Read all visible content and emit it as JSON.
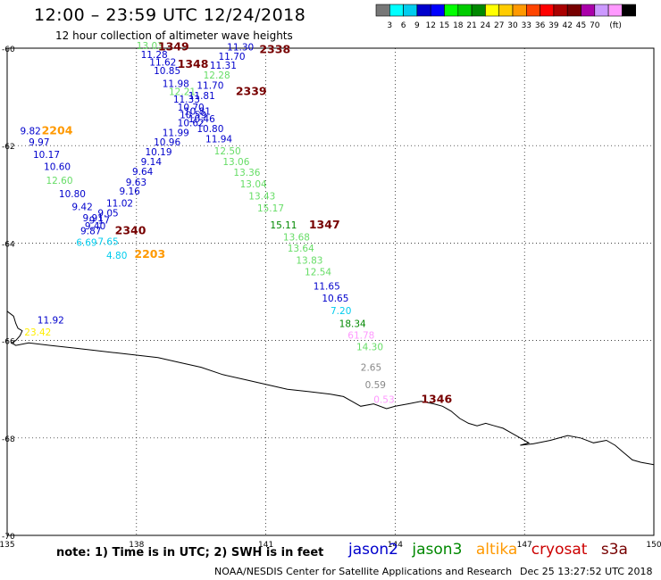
{
  "header": {
    "title": "12:00 – 23:59 UTC 12/24/2018",
    "subtitle": "12 hour collection of altimeter wave heights"
  },
  "colorbar": {
    "colors": [
      "#777777",
      "#00ffff",
      "#00ccee",
      "#0000cc",
      "#0000ff",
      "#00ff00",
      "#00cc00",
      "#008800",
      "#ffff00",
      "#ffcc00",
      "#ff9900",
      "#ff4400",
      "#ff0000",
      "#aa0000",
      "#770000",
      "#aa00aa",
      "#cc99ff",
      "#ff99ff",
      "#000000"
    ],
    "labels": [
      "3",
      "6",
      "9",
      "12",
      "15",
      "18",
      "21",
      "24",
      "27",
      "30",
      "33",
      "36",
      "39",
      "42",
      "45",
      "70",
      "(ft)"
    ]
  },
  "map": {
    "lon_range": [
      135,
      150
    ],
    "lat_range": [
      -70,
      -60
    ],
    "lon_ticks": [
      "135",
      "138",
      "141",
      "144",
      "147",
      "150"
    ],
    "lat_ticks": [
      "-60",
      "-62",
      "-64",
      "-66",
      "-68",
      "-70"
    ],
    "lat_tick_values": [
      -60,
      -62,
      -64,
      -66,
      -68,
      -70
    ],
    "lon_tick_values": [
      135,
      138,
      141,
      144,
      147,
      150
    ],
    "grid": true,
    "coastline_shown": true
  },
  "observations": [
    {
      "lon": 138.0,
      "lat": -60.02,
      "text": "13.03",
      "color": "#66dd66"
    },
    {
      "lon": 138.1,
      "lat": -60.2,
      "text": "11.28",
      "color": "#0000cc"
    },
    {
      "lon": 138.3,
      "lat": -60.36,
      "text": "11.62",
      "color": "#0000cc"
    },
    {
      "lon": 138.4,
      "lat": -60.53,
      "text": "10.85",
      "color": "#0000cc"
    },
    {
      "lon": 138.6,
      "lat": -60.8,
      "text": "11.98",
      "color": "#0000cc"
    },
    {
      "lon": 138.75,
      "lat": -60.96,
      "text": "12.21",
      "color": "#66dd66"
    },
    {
      "lon": 138.85,
      "lat": -61.12,
      "text": "11.33",
      "color": "#0000cc"
    },
    {
      "lon": 138.95,
      "lat": -61.28,
      "text": "10.70",
      "color": "#0000cc"
    },
    {
      "lon": 139.0,
      "lat": -61.44,
      "text": "10.59",
      "color": "#0000cc"
    },
    {
      "lon": 138.95,
      "lat": -61.6,
      "text": "10.62",
      "color": "#0000cc"
    },
    {
      "lon": 138.6,
      "lat": -61.8,
      "text": "11.99",
      "color": "#0000cc"
    },
    {
      "lon": 138.4,
      "lat": -62.0,
      "text": "10.96",
      "color": "#0000cc"
    },
    {
      "lon": 138.2,
      "lat": -62.2,
      "text": "10.19",
      "color": "#0000cc"
    },
    {
      "lon": 138.1,
      "lat": -62.4,
      "text": "9.14",
      "color": "#0000cc"
    },
    {
      "lon": 137.9,
      "lat": -62.6,
      "text": "9.64",
      "color": "#0000cc"
    },
    {
      "lon": 137.75,
      "lat": -62.82,
      "text": "9.63",
      "color": "#0000cc"
    },
    {
      "lon": 137.6,
      "lat": -63.0,
      "text": "9.16",
      "color": "#0000cc"
    },
    {
      "lon": 137.3,
      "lat": -63.25,
      "text": "11.02",
      "color": "#0000cc"
    },
    {
      "lon": 137.1,
      "lat": -63.45,
      "text": "9.05",
      "color": "#0000cc"
    },
    {
      "lon": 136.9,
      "lat": -63.6,
      "text": "9.17",
      "color": "#0000cc"
    },
    {
      "lon": 136.8,
      "lat": -63.72,
      "text": "9.40",
      "color": "#0000cc"
    },
    {
      "lon": 136.7,
      "lat": -63.82,
      "text": "9.87",
      "color": "#0000cc"
    },
    {
      "lon": 137.1,
      "lat": -64.04,
      "text": "7.65",
      "color": "#00ccee"
    },
    {
      "lon": 136.6,
      "lat": -64.06,
      "text": "6.69",
      "color": "#00ccee"
    },
    {
      "lon": 137.3,
      "lat": -64.32,
      "text": "4.80",
      "color": "#00ccee"
    },
    {
      "lon": 136.75,
      "lat": -63.55,
      "text": "9.91",
      "color": "#0000cc"
    },
    {
      "lon": 136.5,
      "lat": -63.32,
      "text": "9.42",
      "color": "#0000cc"
    },
    {
      "lon": 136.2,
      "lat": -63.06,
      "text": "10.80",
      "color": "#0000cc"
    },
    {
      "lon": 135.9,
      "lat": -62.78,
      "text": "12.60",
      "color": "#66dd66"
    },
    {
      "lon": 135.85,
      "lat": -62.5,
      "text": "10.60",
      "color": "#0000cc"
    },
    {
      "lon": 135.6,
      "lat": -62.25,
      "text": "10.17",
      "color": "#0000cc"
    },
    {
      "lon": 135.5,
      "lat": -62.0,
      "text": "9.97",
      "color": "#0000cc"
    },
    {
      "lon": 135.3,
      "lat": -61.77,
      "text": "9.82",
      "color": "#0000cc"
    },
    {
      "lon": 140.1,
      "lat": -60.05,
      "text": "11.30",
      "color": "#0000cc"
    },
    {
      "lon": 139.9,
      "lat": -60.24,
      "text": "11.70",
      "color": "#0000cc"
    },
    {
      "lon": 139.7,
      "lat": -60.42,
      "text": "11.31",
      "color": "#0000cc"
    },
    {
      "lon": 139.55,
      "lat": -60.62,
      "text": "12.28",
      "color": "#66dd66"
    },
    {
      "lon": 139.4,
      "lat": -60.83,
      "text": "11.70",
      "color": "#0000cc"
    },
    {
      "lon": 139.2,
      "lat": -61.04,
      "text": "11.81",
      "color": "#0000cc"
    },
    {
      "lon": 139.1,
      "lat": -61.36,
      "text": "10.81",
      "color": "#0000cc"
    },
    {
      "lon": 139.2,
      "lat": -61.52,
      "text": "10.46",
      "color": "#0000cc"
    },
    {
      "lon": 139.4,
      "lat": -61.72,
      "text": "10.80",
      "color": "#0000cc"
    },
    {
      "lon": 139.6,
      "lat": -61.93,
      "text": "11.94",
      "color": "#0000cc"
    },
    {
      "lon": 139.8,
      "lat": -62.18,
      "text": "12.50",
      "color": "#66dd66"
    },
    {
      "lon": 140.0,
      "lat": -62.4,
      "text": "13.06",
      "color": "#66dd66"
    },
    {
      "lon": 140.25,
      "lat": -62.62,
      "text": "13.36",
      "color": "#66dd66"
    },
    {
      "lon": 140.4,
      "lat": -62.86,
      "text": "13.04",
      "color": "#66dd66"
    },
    {
      "lon": 140.6,
      "lat": -63.1,
      "text": "13.43",
      "color": "#66dd66"
    },
    {
      "lon": 140.8,
      "lat": -63.35,
      "text": "15.17",
      "color": "#66dd66"
    },
    {
      "lon": 141.1,
      "lat": -63.7,
      "text": "15.11",
      "color": "#008800"
    },
    {
      "lon": 141.4,
      "lat": -63.95,
      "text": "13.68",
      "color": "#66dd66"
    },
    {
      "lon": 141.5,
      "lat": -64.18,
      "text": "13.64",
      "color": "#66dd66"
    },
    {
      "lon": 141.7,
      "lat": -64.42,
      "text": "13.83",
      "color": "#66dd66"
    },
    {
      "lon": 141.9,
      "lat": -64.66,
      "text": "12.54",
      "color": "#66dd66"
    },
    {
      "lon": 142.1,
      "lat": -64.95,
      "text": "11.65",
      "color": "#0000cc"
    },
    {
      "lon": 142.3,
      "lat": -65.2,
      "text": "10.65",
      "color": "#0000cc"
    },
    {
      "lon": 142.5,
      "lat": -65.46,
      "text": "7.20",
      "color": "#00ccee"
    },
    {
      "lon": 142.7,
      "lat": -65.72,
      "text": "18.34",
      "color": "#008800"
    },
    {
      "lon": 142.9,
      "lat": -65.96,
      "text": "61.78",
      "color": "#ff99ff"
    },
    {
      "lon": 143.1,
      "lat": -66.2,
      "text": "14.30",
      "color": "#66dd66"
    },
    {
      "lon": 143.2,
      "lat": -66.62,
      "text": "2.65",
      "color": "#888888"
    },
    {
      "lon": 143.3,
      "lat": -66.98,
      "text": "0.59",
      "color": "#888888"
    },
    {
      "lon": 143.5,
      "lat": -67.28,
      "text": "0.53",
      "color": "#ff99ff"
    },
    {
      "lon": 135.7,
      "lat": -65.65,
      "text": "11.92",
      "color": "#0000cc"
    },
    {
      "lon": 135.4,
      "lat": -65.9,
      "text": "23.42",
      "color": "#ffee00"
    }
  ],
  "track_labels": [
    {
      "lon": 138.5,
      "lat": -60.05,
      "text": "1349",
      "color": "#770000"
    },
    {
      "lon": 138.95,
      "lat": -60.4,
      "text": "1348",
      "color": "#770000"
    },
    {
      "lon": 140.85,
      "lat": -60.1,
      "text": "2338",
      "color": "#770000"
    },
    {
      "lon": 140.3,
      "lat": -60.96,
      "text": "2339",
      "color": "#770000"
    },
    {
      "lon": 135.8,
      "lat": -61.77,
      "text": "2204",
      "color": "#ff9900"
    },
    {
      "lon": 142.0,
      "lat": -63.7,
      "text": "1347",
      "color": "#770000"
    },
    {
      "lon": 137.5,
      "lat": -63.82,
      "text": "2340",
      "color": "#770000"
    },
    {
      "lon": 137.95,
      "lat": -64.3,
      "text": "2203",
      "color": "#ff9900"
    },
    {
      "lon": 144.6,
      "lat": -67.28,
      "text": "1346",
      "color": "#770000"
    }
  ],
  "footer": {
    "note": "note: 1) Time is in UTC; 2) SWH is in feet",
    "satellites": [
      {
        "name": "jason2",
        "color": "#0000cc"
      },
      {
        "name": "jason3",
        "color": "#008800"
      },
      {
        "name": "altika",
        "color": "#ff9900"
      },
      {
        "name": "cryosat",
        "color": "#cc0000"
      },
      {
        "name": "s3a",
        "color": "#770000"
      }
    ],
    "credit": "NOAA/NESDIS Center for Satellite Applications and Research",
    "timestamp": "Dec 25 13:27:52 UTC 2018"
  }
}
